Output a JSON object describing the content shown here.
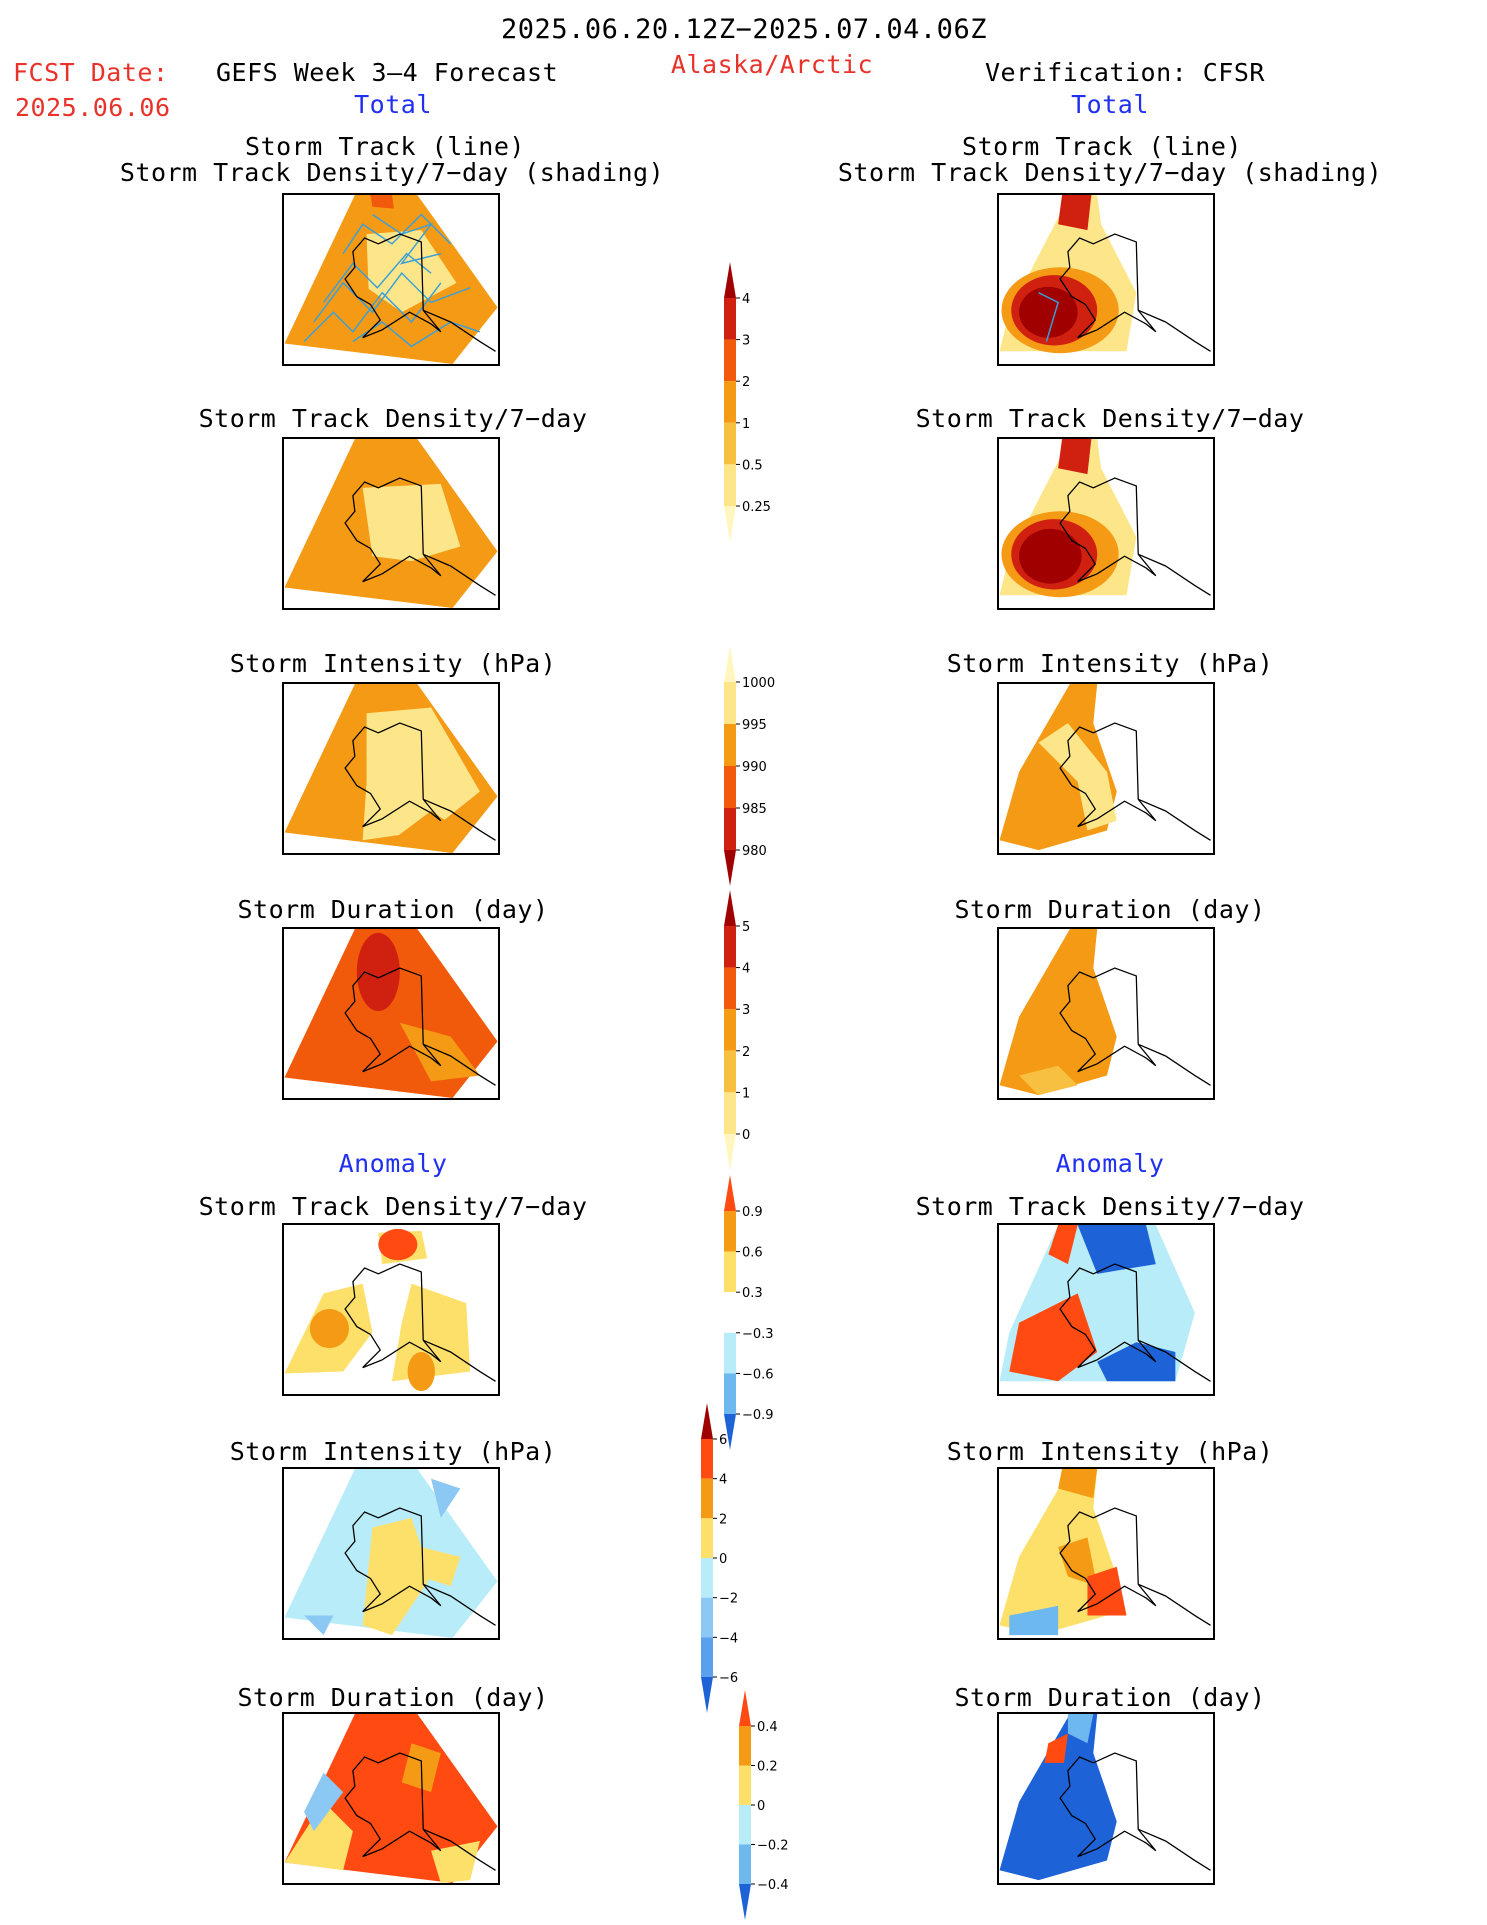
{
  "header": {
    "date_range": "2025.06.20.12Z−2025.07.04.06Z",
    "fcst_label": "FCST Date:",
    "fcst_date": "2025.06.06",
    "forecast_title": "GEFS Week 3–4 Forecast",
    "region": "Alaska/Arctic",
    "verification": "Verification: CFSR"
  },
  "sections": {
    "total": "Total",
    "anomaly": "Anomaly"
  },
  "panel_titles": {
    "track_line": "Storm Track (line)",
    "track_density_shading": "Storm Track Density/7−day (shading)",
    "track_density": "Storm Track Density/7−day",
    "intensity": "Storm Intensity (hPa)",
    "duration": "Storm Duration (day)"
  },
  "colorbars": {
    "total_density": {
      "labels": [
        "4",
        "3",
        "2",
        "1",
        "0.5",
        "0.25"
      ],
      "colors": [
        "#a00000",
        "#d02010",
        "#f05a0a",
        "#f59a14",
        "#f8c040",
        "#fde68a",
        "#fff7bf"
      ]
    },
    "total_intensity": {
      "labels": [
        "1000",
        "995",
        "990",
        "985",
        "980"
      ],
      "colors": [
        "#fff7bf",
        "#fde68a",
        "#f59a14",
        "#f05a0a",
        "#d02010",
        "#a00000"
      ]
    },
    "total_duration": {
      "labels": [
        "5",
        "4",
        "3",
        "2",
        "1",
        "0"
      ],
      "colors": [
        "#a00000",
        "#d02010",
        "#f05a0a",
        "#f59a14",
        "#f8c040",
        "#fde68a",
        "#fff7bf"
      ]
    },
    "anom_density": {
      "labels": [
        "0.9",
        "0.6",
        "0.3",
        "−0.3",
        "−0.6",
        "−0.9"
      ],
      "colors": [
        "#ff4a12",
        "#f59a14",
        "#fde06a",
        "#ffffff",
        "#b8ecf8",
        "#6eb8f0",
        "#1e62d8"
      ]
    },
    "anom_intensity": {
      "labels": [
        "6",
        "4",
        "2",
        "0",
        "−2",
        "−4",
        "−6"
      ],
      "colors": [
        "#a00000",
        "#ff4a12",
        "#f59a14",
        "#fde06a",
        "#b8ecf8",
        "#8cc8f4",
        "#5aa0ec",
        "#1e62d8"
      ]
    },
    "anom_duration": {
      "labels": [
        "0.4",
        "0.2",
        "0",
        "−0.2",
        "−0.4"
      ],
      "colors": [
        "#ff4a12",
        "#f59a14",
        "#fde06a",
        "#b8ecf8",
        "#6eb8f0",
        "#1e62d8"
      ]
    }
  }
}
